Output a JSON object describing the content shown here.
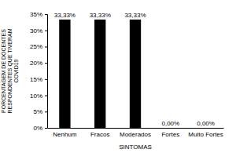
{
  "chart_data": {
    "type": "bar",
    "xlabel": "SINTOMAS",
    "ylabel": "PORCENTAGEM DE DOCENTES RESPONDENTES QUE TIVERAM COVID19",
    "categories": [
      "Nenhum",
      "Fracos",
      "Moderados",
      "Fortes",
      "Muito Fortes"
    ],
    "values": [
      33.33,
      33.33,
      33.33,
      0,
      0
    ],
    "value_labels": [
      "33,33%",
      "33,33%",
      "33,33%",
      "0,00%",
      "0,00%"
    ],
    "data_labels": true,
    "color": "#000000",
    "grid": false,
    "ylim": [
      0,
      35
    ],
    "yticks": [
      {
        "value": 0,
        "label": "0%"
      },
      {
        "value": 5,
        "label": "5%"
      },
      {
        "value": 10,
        "label": "10%"
      },
      {
        "value": 15,
        "label": "15%"
      },
      {
        "value": 20,
        "label": "20%"
      },
      {
        "value": 25,
        "label": "25%"
      },
      {
        "value": 30,
        "label": "30%"
      },
      {
        "value": 35,
        "label": "35%"
      }
    ]
  }
}
